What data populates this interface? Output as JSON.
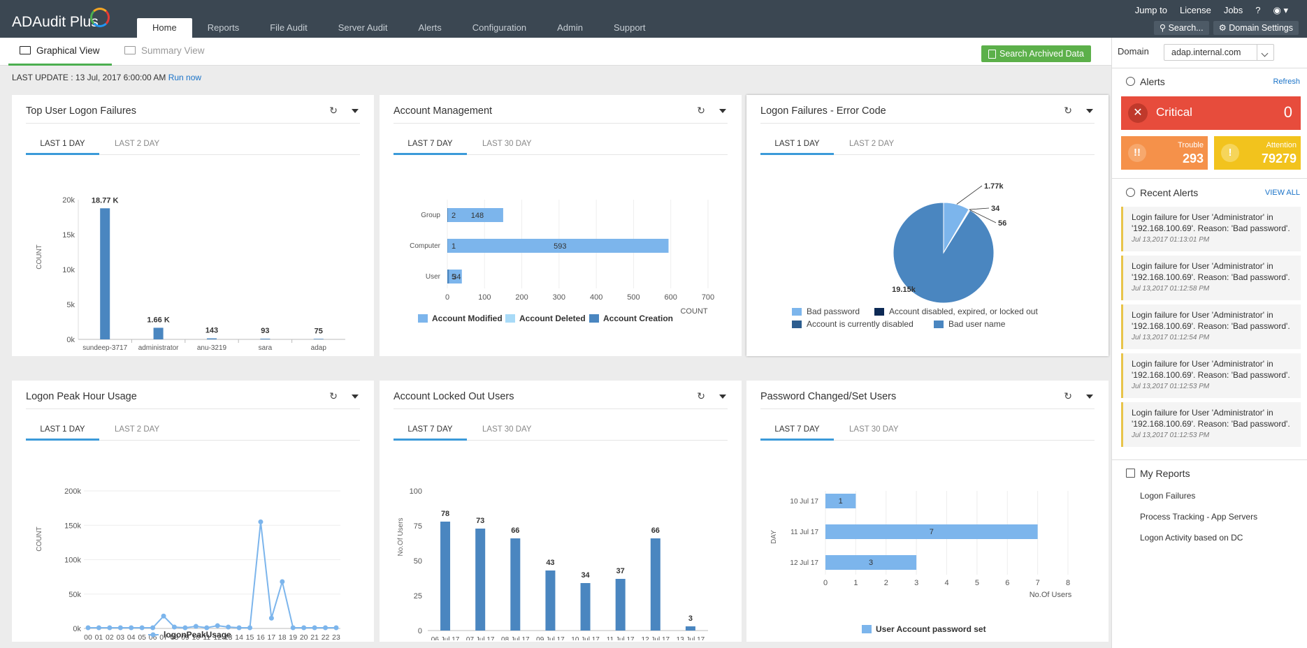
{
  "app": {
    "title": "ADAudit Plus"
  },
  "nav": {
    "tabs": [
      "Home",
      "Reports",
      "File Audit",
      "Server Audit",
      "Alerts",
      "Configuration",
      "Admin",
      "Support"
    ]
  },
  "top_links": {
    "jump": "Jump to",
    "license": "License",
    "jobs": "Jobs",
    "help": "?"
  },
  "top_buttons": {
    "search": "Search...",
    "domain_settings": "Domain Settings"
  },
  "views": {
    "graphical": "Graphical View",
    "summary": "Summary View"
  },
  "archive_button": "Search Archived Data",
  "last_update": {
    "label": "LAST UPDATE : 13 Jul, 2017 6:00:00 AM",
    "run": "Run now"
  },
  "domain": {
    "label": "Domain",
    "value": "adap.internal.com"
  },
  "alerts": {
    "heading": "Alerts",
    "refresh": "Refresh",
    "critical_label": "Critical",
    "critical_value": "0",
    "trouble_label": "Trouble",
    "trouble_value": "293",
    "attention_label": "Attention",
    "attention_value": "79279",
    "colors": {
      "critical": "#e74c3c",
      "trouble": "#f5914a",
      "attention": "#f2c31d"
    }
  },
  "recent_alerts": {
    "heading": "Recent Alerts",
    "view_all": "VIEW ALL",
    "items": [
      {
        "text": "Login failure for User 'Administrator' in '192.168.100.69'. Reason: 'Bad password'.",
        "date": "Jul 13,2017 01:13:01 PM"
      },
      {
        "text": "Login failure for User 'Administrator' in '192.168.100.69'. Reason: 'Bad password'.",
        "date": "Jul 13,2017 01:12:58 PM"
      },
      {
        "text": "Login failure for User 'Administrator' in '192.168.100.69'. Reason: 'Bad password'.",
        "date": "Jul 13,2017 01:12:54 PM"
      },
      {
        "text": "Login failure for User 'Administrator' in '192.168.100.69'. Reason: 'Bad password'.",
        "date": "Jul 13,2017 01:12:53 PM"
      },
      {
        "text": "Login failure for User 'Administrator' in '192.168.100.69'. Reason: 'Bad password'.",
        "date": "Jul 13,2017 01:12:53 PM"
      }
    ]
  },
  "my_reports": {
    "heading": "My Reports",
    "items": [
      "Logon Failures",
      "Process Tracking - App Servers",
      "Logon Activity based on DC"
    ]
  },
  "panels": [
    {
      "title": "Top User Logon Failures",
      "tabs": [
        "LAST 1 DAY",
        "LAST 2 DAY"
      ]
    },
    {
      "title": "Account Management",
      "tabs": [
        "LAST 7 DAY",
        "LAST 30 DAY"
      ]
    },
    {
      "title": "Logon Failures - Error Code",
      "tabs": [
        "LAST 1 DAY",
        "LAST 2 DAY"
      ]
    },
    {
      "title": "Logon Peak Hour Usage",
      "tabs": [
        "LAST 1 DAY",
        "LAST 2 DAY"
      ]
    },
    {
      "title": "Account Locked Out Users",
      "tabs": [
        "LAST 7 DAY",
        "LAST 30 DAY"
      ]
    },
    {
      "title": "Password Changed/Set Users",
      "tabs": [
        "LAST 7 DAY",
        "LAST 30 DAY"
      ]
    }
  ],
  "chart_data": [
    {
      "type": "bar",
      "ylabel": "COUNT",
      "categories": [
        "sundeep-3717",
        "administrator",
        "anu-3219",
        "sara",
        "adap"
      ],
      "values": [
        18770,
        1660,
        143,
        93,
        75
      ],
      "data_labels": [
        "18.77 K",
        "1.66 K",
        "143",
        "93",
        "75"
      ],
      "yticks": [
        "20k",
        "15k",
        "10k",
        "5k",
        "0k"
      ],
      "ylim": [
        0,
        20000
      ],
      "color": "#4a86c0"
    },
    {
      "type": "bar",
      "orientation": "horizontal",
      "categories": [
        "Group",
        "Computer",
        "User"
      ],
      "series": [
        {
          "name": "Account Modified",
          "values": [
            148,
            593,
            34
          ],
          "color": "#7cb5ec"
        },
        {
          "name": "Account Deleted",
          "values": [
            0,
            0,
            0
          ],
          "color": "#a8daf7"
        },
        {
          "name": "Account Creation",
          "values": [
            2,
            1,
            5
          ],
          "color": "#4a86c0"
        }
      ],
      "xticks": [
        "0",
        "100",
        "200",
        "300",
        "400",
        "500",
        "600",
        "700"
      ],
      "xlim": [
        0,
        700
      ],
      "xlabel": "COUNT"
    },
    {
      "type": "pie",
      "slices": [
        {
          "name": "Bad password",
          "value": 1770,
          "label": "1.77k",
          "color": "#7cb5ec"
        },
        {
          "name": "Account disabled, expired, or locked out",
          "value": 34,
          "label": "34",
          "color": "#0d2a55"
        },
        {
          "name": "Account is currently disabled",
          "value": 56,
          "label": "56",
          "color": "#2c5d8f"
        },
        {
          "name": "Bad user name",
          "value": 19150,
          "label": "19.15k",
          "color": "#4a86c0"
        }
      ]
    },
    {
      "type": "line",
      "ylabel": "COUNT",
      "x": [
        "00",
        "01",
        "02",
        "03",
        "04",
        "05",
        "06",
        "07",
        "08",
        "09",
        "10",
        "11",
        "12",
        "13",
        "14",
        "15",
        "16",
        "17",
        "18",
        "19",
        "20",
        "21",
        "22",
        "23"
      ],
      "series": [
        {
          "name": "logonPeakUsage",
          "values": [
            1000,
            1000,
            1000,
            1000,
            1000,
            1000,
            1000,
            18000,
            2000,
            1000,
            3000,
            1000,
            4000,
            2000,
            1000,
            1000,
            155000,
            15000,
            68000,
            1000,
            1000,
            1000,
            1000,
            1000
          ],
          "color": "#7cb5ec"
        }
      ],
      "yticks": [
        "200k",
        "150k",
        "100k",
        "50k",
        "0k"
      ],
      "ylim": [
        0,
        200000
      ]
    },
    {
      "type": "bar",
      "ylabel": "No.Of Users",
      "categories": [
        "06 Jul 17",
        "07 Jul 17",
        "08 Jul 17",
        "09 Jul 17",
        "10 Jul 17",
        "11 Jul 17",
        "12 Jul 17",
        "13 Jul 17"
      ],
      "values": [
        78,
        73,
        66,
        43,
        34,
        37,
        66,
        3
      ],
      "yticks": [
        "100",
        "75",
        "50",
        "25",
        "0"
      ],
      "ylim": [
        0,
        100
      ],
      "color": "#4a86c0"
    },
    {
      "type": "bar",
      "orientation": "horizontal",
      "ylabel": "DAY",
      "xlabel": "No.Of Users",
      "categories": [
        "10 Jul 17",
        "11 Jul 17",
        "12 Jul 17"
      ],
      "series": [
        {
          "name": "User Account password set",
          "values": [
            1,
            7,
            3
          ],
          "color": "#7cb5ec"
        }
      ],
      "xticks": [
        "0",
        "1",
        "2",
        "3",
        "4",
        "5",
        "6",
        "7",
        "8"
      ],
      "xlim": [
        0,
        8
      ]
    }
  ]
}
